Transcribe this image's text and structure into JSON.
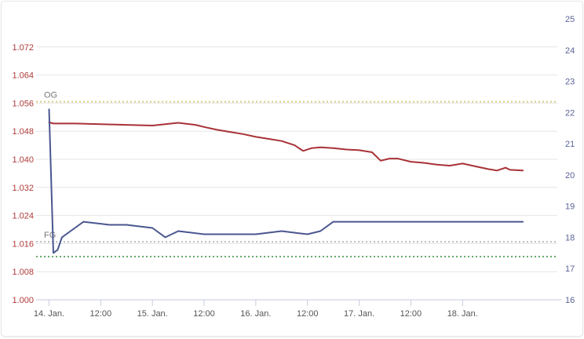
{
  "chart_data": {
    "type": "line",
    "x_axis": {
      "type": "datetime",
      "min": "2024-01-13T21:00",
      "max": "2024-01-18T22:00",
      "tick_labels": [
        {
          "t": "2024-01-14T00:00",
          "label": "14. Jan."
        },
        {
          "t": "2024-01-14T12:00",
          "label": "12:00"
        },
        {
          "t": "2024-01-15T00:00",
          "label": "15. Jan."
        },
        {
          "t": "2024-01-15T12:00",
          "label": "12:00"
        },
        {
          "t": "2024-01-16T00:00",
          "label": "16. Jan."
        },
        {
          "t": "2024-01-16T12:00",
          "label": "12:00"
        },
        {
          "t": "2024-01-17T00:00",
          "label": "17. Jan."
        },
        {
          "t": "2024-01-17T12:00",
          "label": "12:00"
        },
        {
          "t": "2024-01-18T00:00",
          "label": "18. Jan."
        }
      ]
    },
    "y_axis_left": {
      "min": 1.0,
      "max": 1.08,
      "ticks": [
        "1.000",
        "1.008",
        "1.016",
        "1.024",
        "1.032",
        "1.040",
        "1.048",
        "1.056",
        "1.064",
        "1.072"
      ],
      "color": "#b03a3a"
    },
    "y_axis_right": {
      "min": 16,
      "max": 25,
      "ticks": [
        "16",
        "17",
        "18",
        "19",
        "20",
        "21",
        "22",
        "23",
        "24",
        "25"
      ],
      "color": "#5a6396"
    },
    "grid": true,
    "reference_lines": [
      {
        "label": "OG",
        "value": 1.0564,
        "color": "#d6d080"
      },
      {
        "label": "FG",
        "value": 1.0165,
        "color": "#bbbbbb"
      },
      {
        "label": "",
        "value": 1.0123,
        "color": "#66aa66"
      }
    ],
    "series": [
      {
        "axis": "left",
        "color": "#a83236",
        "points": [
          [
            "2024-01-14T00:00",
            1.0505
          ],
          [
            "2024-01-14T01:00",
            1.0502
          ],
          [
            "2024-01-14T06:00",
            1.0502
          ],
          [
            "2024-01-14T12:00",
            1.05
          ],
          [
            "2024-01-14T18:00",
            1.0498
          ],
          [
            "2024-01-15T00:00",
            1.0496
          ],
          [
            "2024-01-15T03:00",
            1.05
          ],
          [
            "2024-01-15T06:00",
            1.0504
          ],
          [
            "2024-01-15T10:00",
            1.0498
          ],
          [
            "2024-01-15T12:00",
            1.0492
          ],
          [
            "2024-01-15T15:00",
            1.0484
          ],
          [
            "2024-01-15T18:00",
            1.0478
          ],
          [
            "2024-01-15T21:00",
            1.0472
          ],
          [
            "2024-01-16T00:00",
            1.0464
          ],
          [
            "2024-01-16T03:00",
            1.0458
          ],
          [
            "2024-01-16T06:00",
            1.0452
          ],
          [
            "2024-01-16T09:00",
            1.044
          ],
          [
            "2024-01-16T11:00",
            1.0424
          ],
          [
            "2024-01-16T13:00",
            1.0432
          ],
          [
            "2024-01-16T15:00",
            1.0434
          ],
          [
            "2024-01-16T18:00",
            1.0432
          ],
          [
            "2024-01-16T21:00",
            1.0428
          ],
          [
            "2024-01-17T00:00",
            1.0426
          ],
          [
            "2024-01-17T03:00",
            1.042
          ],
          [
            "2024-01-17T05:00",
            1.0396
          ],
          [
            "2024-01-17T07:00",
            1.0402
          ],
          [
            "2024-01-17T09:00",
            1.0402
          ],
          [
            "2024-01-17T12:00",
            1.0393
          ],
          [
            "2024-01-17T15:00",
            1.039
          ],
          [
            "2024-01-17T18:00",
            1.0385
          ],
          [
            "2024-01-17T21:00",
            1.0382
          ],
          [
            "2024-01-18T00:00",
            1.0388
          ],
          [
            "2024-01-18T03:00",
            1.038
          ],
          [
            "2024-01-18T06:00",
            1.0372
          ],
          [
            "2024-01-18T08:00",
            1.0368
          ],
          [
            "2024-01-18T10:00",
            1.0376
          ],
          [
            "2024-01-18T11:00",
            1.037
          ],
          [
            "2024-01-18T14:00",
            1.0368
          ]
        ]
      },
      {
        "axis": "right",
        "color": "#4a5690",
        "points": [
          [
            "2024-01-14T00:00",
            22.1
          ],
          [
            "2024-01-14T01:00",
            17.5
          ],
          [
            "2024-01-14T02:00",
            17.6
          ],
          [
            "2024-01-14T03:00",
            18.0
          ],
          [
            "2024-01-14T06:00",
            18.3
          ],
          [
            "2024-01-14T08:00",
            18.5
          ],
          [
            "2024-01-14T14:00",
            18.4
          ],
          [
            "2024-01-14T18:00",
            18.4
          ],
          [
            "2024-01-15T00:00",
            18.3
          ],
          [
            "2024-01-15T03:00",
            18.0
          ],
          [
            "2024-01-15T06:00",
            18.2
          ],
          [
            "2024-01-15T12:00",
            18.1
          ],
          [
            "2024-01-15T18:00",
            18.1
          ],
          [
            "2024-01-16T00:00",
            18.1
          ],
          [
            "2024-01-16T06:00",
            18.2
          ],
          [
            "2024-01-16T12:00",
            18.1
          ],
          [
            "2024-01-16T15:00",
            18.2
          ],
          [
            "2024-01-16T18:00",
            18.5
          ],
          [
            "2024-01-17T00:00",
            18.5
          ],
          [
            "2024-01-17T06:00",
            18.5
          ],
          [
            "2024-01-17T12:00",
            18.5
          ],
          [
            "2024-01-17T18:00",
            18.5
          ],
          [
            "2024-01-18T00:00",
            18.5
          ],
          [
            "2024-01-18T06:00",
            18.5
          ],
          [
            "2024-01-18T12:00",
            18.5
          ],
          [
            "2024-01-18T14:00",
            18.5
          ]
        ]
      }
    ]
  }
}
